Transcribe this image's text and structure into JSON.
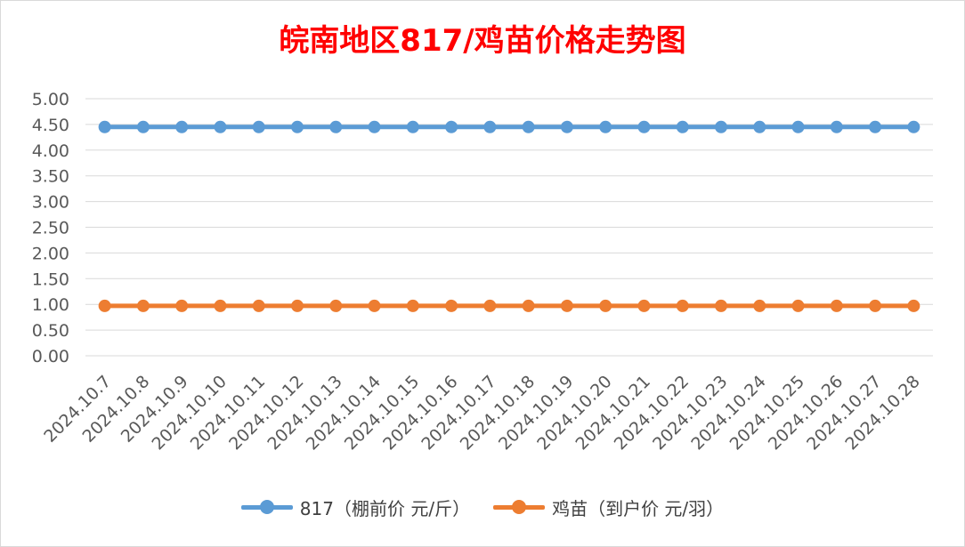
{
  "chart_data": {
    "type": "line",
    "title": "皖南地区817/鸡苗价格走势图",
    "categories": [
      "2024.10.7",
      "2024.10.8",
      "2024.10.9",
      "2024.10.10",
      "2024.10.11",
      "2024.10.12",
      "2024.10.13",
      "2024.10.14",
      "2024.10.15",
      "2024.10.16",
      "2024.10.17",
      "2024.10.18",
      "2024.10.19",
      "2024.10.20",
      "2024.10.21",
      "2024.10.22",
      "2024.10.23",
      "2024.10.24",
      "2024.10.25",
      "2024.10.26",
      "2024.10.27",
      "2024.10.28"
    ],
    "y_ticks": [
      "0.00",
      "0.50",
      "1.00",
      "1.50",
      "2.00",
      "2.50",
      "3.00",
      "3.50",
      "4.00",
      "4.50",
      "5.00"
    ],
    "ylim": [
      0,
      5
    ],
    "grid": true,
    "legend_position": "bottom",
    "series": [
      {
        "name": "817（棚前价 元/斤）",
        "color": "#5b9bd5",
        "values": [
          4.45,
          4.45,
          4.45,
          4.45,
          4.45,
          4.45,
          4.45,
          4.45,
          4.45,
          4.45,
          4.45,
          4.45,
          4.45,
          4.45,
          4.45,
          4.45,
          4.45,
          4.45,
          4.45,
          4.45,
          4.45,
          4.45
        ]
      },
      {
        "name": "鸡苗（到户价 元/羽）",
        "color": "#ed7d31",
        "values": [
          0.97,
          0.97,
          0.97,
          0.97,
          0.97,
          0.97,
          0.97,
          0.97,
          0.97,
          0.97,
          0.97,
          0.97,
          0.97,
          0.97,
          0.97,
          0.97,
          0.97,
          0.97,
          0.97,
          0.97,
          0.97,
          0.97
        ]
      }
    ]
  }
}
